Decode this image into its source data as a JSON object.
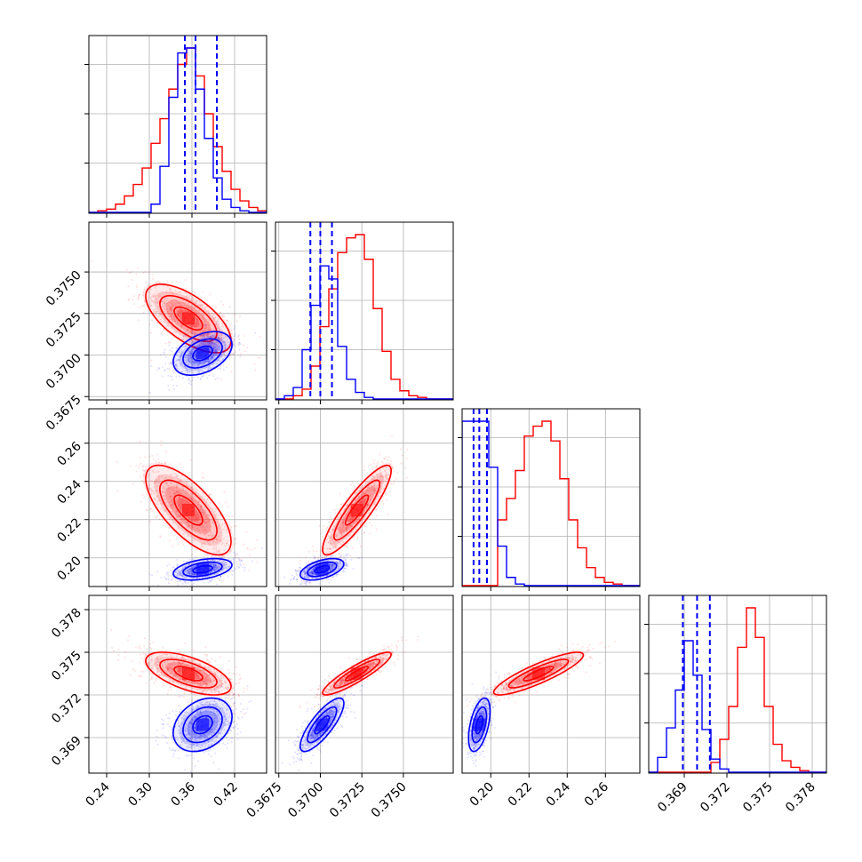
{
  "colors": {
    "red": "#ff0000",
    "blue": "#0000ff",
    "grid": "#b0b0b0",
    "frame": "#000000"
  },
  "chart_data": {
    "type": "corner",
    "params": [
      {
        "range": [
          0.215,
          0.465
        ],
        "ticks": [
          "0.24",
          "0.30",
          "0.36",
          "0.42"
        ],
        "tick_values": [
          0.24,
          0.3,
          0.36,
          0.42
        ]
      },
      {
        "range": [
          0.3673,
          0.378
        ],
        "ticks": [
          "0.3675",
          "0.3700",
          "0.3725",
          "0.3750"
        ],
        "tick_values": [
          0.3675,
          0.37,
          0.3725,
          0.375
        ]
      },
      {
        "range": [
          0.185,
          0.278
        ],
        "ticks": [
          "0.20",
          "0.22",
          "0.24",
          "0.26"
        ],
        "tick_values": [
          0.2,
          0.22,
          0.24,
          0.26
        ]
      },
      {
        "range": [
          0.3665,
          0.379
        ],
        "ticks": [
          "0.369",
          "0.372",
          "0.375",
          "0.378"
        ],
        "tick_values": [
          0.369,
          0.372,
          0.375,
          0.378
        ]
      }
    ],
    "series": [
      {
        "color": "red",
        "mean": [
          0.355,
          0.3722,
          0.225,
          0.3735
        ],
        "std": [
          0.032,
          0.0011,
          0.0125,
          0.0008
        ],
        "corr": {
          "0_1": -0.65,
          "0_2": -0.7,
          "0_3": -0.6,
          "1_2": 0.88,
          "1_3": 0.9,
          "2_3": 0.87
        },
        "hist1d": [
          [
            0.0,
            0.01,
            0.02,
            0.05,
            0.1,
            0.17,
            0.27,
            0.42,
            0.57,
            0.75,
            0.9,
            1.0,
            0.83,
            0.6,
            0.4,
            0.25,
            0.14,
            0.07,
            0.03,
            0.01
          ],
          [
            0.0,
            0.0,
            0.02,
            0.06,
            0.2,
            0.44,
            0.67,
            0.89,
            0.98,
            1.0,
            0.85,
            0.55,
            0.29,
            0.12,
            0.05,
            0.02,
            0.01,
            0.0,
            0.0,
            0.0
          ],
          [
            0.0,
            0.0,
            0.0,
            0.0,
            0.4,
            0.53,
            0.7,
            0.91,
            0.97,
            1.0,
            0.88,
            0.65,
            0.4,
            0.23,
            0.11,
            0.05,
            0.02,
            0.01,
            0.0,
            0.0
          ],
          [
            0.0,
            0.0,
            0.0,
            0.0,
            0.0,
            0.0,
            0.0,
            0.06,
            0.2,
            0.4,
            0.76,
            1.0,
            0.82,
            0.4,
            0.17,
            0.07,
            0.03,
            0.01,
            0.0,
            0.0
          ]
        ]
      },
      {
        "color": "blue",
        "mean": [
          0.375,
          0.3701,
          0.194,
          0.3699
        ],
        "std": [
          0.022,
          0.0007,
          0.003,
          0.001
        ],
        "corr": {
          "0_1": 0.4,
          "0_2": 0.4,
          "0_3": 0.3,
          "1_2": 0.5,
          "1_3": 0.8,
          "2_3": 0.5
        },
        "quantile_lines": [
          [
            0.35,
            0.365,
            0.395
          ],
          [
            0.3694,
            0.37,
            0.3707
          ],
          [
            0.191,
            0.194,
            0.198
          ],
          [
            0.3689,
            0.3699,
            0.3708
          ]
        ],
        "hist1d": [
          [
            0.0,
            0.0,
            0.0,
            0.0,
            0.0,
            0.0,
            0.0,
            0.05,
            0.28,
            0.7,
            0.97,
            1.0,
            0.75,
            0.45,
            0.21,
            0.08,
            0.03,
            0.01,
            0.0,
            0.0
          ],
          [
            0.0,
            0.02,
            0.07,
            0.3,
            0.57,
            0.81,
            0.73,
            0.32,
            0.12,
            0.04,
            0.01,
            0.0,
            0.0,
            0.0,
            0.0,
            0.0,
            0.0,
            0.0,
            0.0,
            0.0
          ],
          [
            1.0,
            1.0,
            1.0,
            0.72,
            0.24,
            0.05,
            0.01,
            0.0,
            0.0,
            0.0,
            0.0,
            0.0,
            0.0,
            0.0,
            0.0,
            0.0,
            0.0,
            0.0,
            0.0,
            0.0
          ],
          [
            0.0,
            0.09,
            0.27,
            0.5,
            0.8,
            0.59,
            0.26,
            0.08,
            0.02,
            0.0,
            0.0,
            0.0,
            0.0,
            0.0,
            0.0,
            0.0,
            0.0,
            0.0,
            0.0,
            0.0
          ]
        ]
      }
    ],
    "contour_levels": [
      0.5,
      1.0,
      1.5
    ],
    "grid": true
  }
}
